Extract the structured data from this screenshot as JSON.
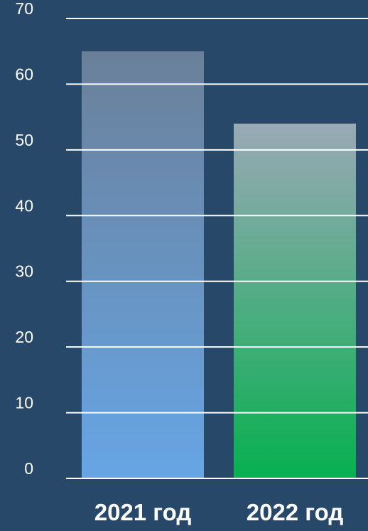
{
  "background_color": "#28486a",
  "text_color": "#ffffff",
  "chart_data": {
    "type": "bar",
    "categories": [
      "2021 год",
      "2022 год"
    ],
    "values": [
      65,
      54
    ],
    "ylim": [
      0,
      70
    ],
    "yticks": [
      "0",
      "10",
      "20",
      "30",
      "40",
      "50",
      "60",
      "70"
    ],
    "grid": true,
    "legend": "none",
    "title": "",
    "xlabel": "",
    "ylabel": "",
    "bar_colors": [
      {
        "top": "#6a8099",
        "bottom": "#67a5e5"
      },
      {
        "top": "#9aa9b6",
        "bottom": "#07b050"
      }
    ]
  }
}
